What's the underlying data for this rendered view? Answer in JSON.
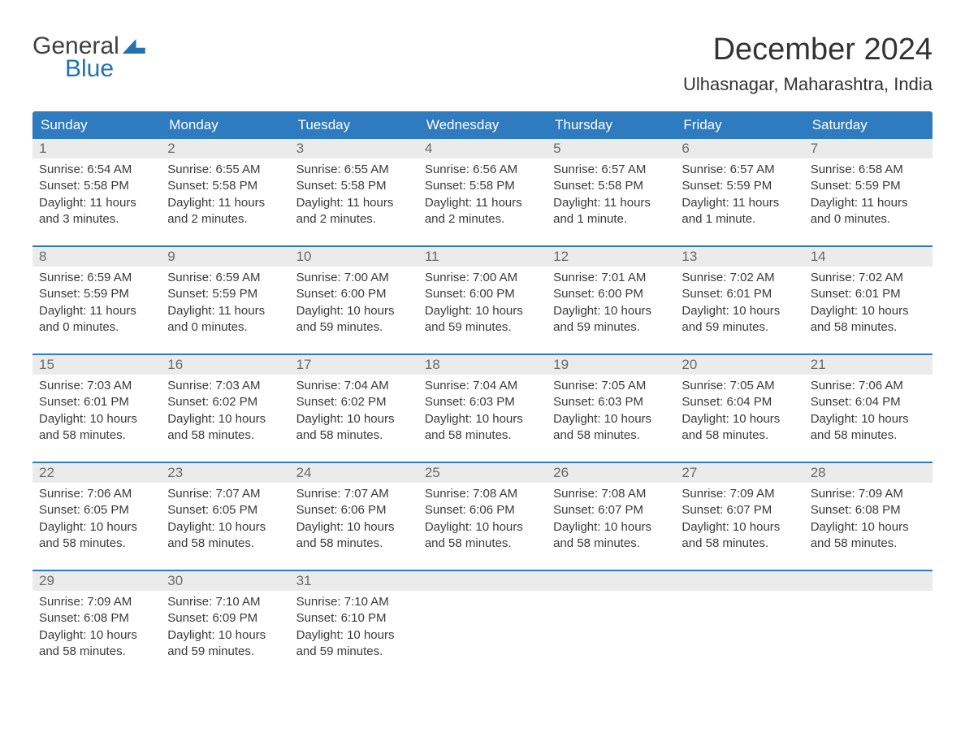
{
  "logo": {
    "text_general": "General",
    "text_blue": "Blue"
  },
  "header": {
    "month_title": "December 2024",
    "location": "Ulhasnagar, Maharashtra, India"
  },
  "colors": {
    "header_bg": "#2e7bc0",
    "week_border": "#2e7bc0",
    "day_number_bg": "#ebebeb",
    "day_number_text": "#6a6a6a",
    "content_text": "#3a3a3a",
    "logo_blue": "#2171b5",
    "logo_gray": "#404040",
    "background": "#ffffff"
  },
  "day_names": [
    "Sunday",
    "Monday",
    "Tuesday",
    "Wednesday",
    "Thursday",
    "Friday",
    "Saturday"
  ],
  "weeks": [
    [
      {
        "num": "1",
        "sunrise": "Sunrise: 6:54 AM",
        "sunset": "Sunset: 5:58 PM",
        "daylight1": "Daylight: 11 hours",
        "daylight2": "and 3 minutes."
      },
      {
        "num": "2",
        "sunrise": "Sunrise: 6:55 AM",
        "sunset": "Sunset: 5:58 PM",
        "daylight1": "Daylight: 11 hours",
        "daylight2": "and 2 minutes."
      },
      {
        "num": "3",
        "sunrise": "Sunrise: 6:55 AM",
        "sunset": "Sunset: 5:58 PM",
        "daylight1": "Daylight: 11 hours",
        "daylight2": "and 2 minutes."
      },
      {
        "num": "4",
        "sunrise": "Sunrise: 6:56 AM",
        "sunset": "Sunset: 5:58 PM",
        "daylight1": "Daylight: 11 hours",
        "daylight2": "and 2 minutes."
      },
      {
        "num": "5",
        "sunrise": "Sunrise: 6:57 AM",
        "sunset": "Sunset: 5:58 PM",
        "daylight1": "Daylight: 11 hours",
        "daylight2": "and 1 minute."
      },
      {
        "num": "6",
        "sunrise": "Sunrise: 6:57 AM",
        "sunset": "Sunset: 5:59 PM",
        "daylight1": "Daylight: 11 hours",
        "daylight2": "and 1 minute."
      },
      {
        "num": "7",
        "sunrise": "Sunrise: 6:58 AM",
        "sunset": "Sunset: 5:59 PM",
        "daylight1": "Daylight: 11 hours",
        "daylight2": "and 0 minutes."
      }
    ],
    [
      {
        "num": "8",
        "sunrise": "Sunrise: 6:59 AM",
        "sunset": "Sunset: 5:59 PM",
        "daylight1": "Daylight: 11 hours",
        "daylight2": "and 0 minutes."
      },
      {
        "num": "9",
        "sunrise": "Sunrise: 6:59 AM",
        "sunset": "Sunset: 5:59 PM",
        "daylight1": "Daylight: 11 hours",
        "daylight2": "and 0 minutes."
      },
      {
        "num": "10",
        "sunrise": "Sunrise: 7:00 AM",
        "sunset": "Sunset: 6:00 PM",
        "daylight1": "Daylight: 10 hours",
        "daylight2": "and 59 minutes."
      },
      {
        "num": "11",
        "sunrise": "Sunrise: 7:00 AM",
        "sunset": "Sunset: 6:00 PM",
        "daylight1": "Daylight: 10 hours",
        "daylight2": "and 59 minutes."
      },
      {
        "num": "12",
        "sunrise": "Sunrise: 7:01 AM",
        "sunset": "Sunset: 6:00 PM",
        "daylight1": "Daylight: 10 hours",
        "daylight2": "and 59 minutes."
      },
      {
        "num": "13",
        "sunrise": "Sunrise: 7:02 AM",
        "sunset": "Sunset: 6:01 PM",
        "daylight1": "Daylight: 10 hours",
        "daylight2": "and 59 minutes."
      },
      {
        "num": "14",
        "sunrise": "Sunrise: 7:02 AM",
        "sunset": "Sunset: 6:01 PM",
        "daylight1": "Daylight: 10 hours",
        "daylight2": "and 58 minutes."
      }
    ],
    [
      {
        "num": "15",
        "sunrise": "Sunrise: 7:03 AM",
        "sunset": "Sunset: 6:01 PM",
        "daylight1": "Daylight: 10 hours",
        "daylight2": "and 58 minutes."
      },
      {
        "num": "16",
        "sunrise": "Sunrise: 7:03 AM",
        "sunset": "Sunset: 6:02 PM",
        "daylight1": "Daylight: 10 hours",
        "daylight2": "and 58 minutes."
      },
      {
        "num": "17",
        "sunrise": "Sunrise: 7:04 AM",
        "sunset": "Sunset: 6:02 PM",
        "daylight1": "Daylight: 10 hours",
        "daylight2": "and 58 minutes."
      },
      {
        "num": "18",
        "sunrise": "Sunrise: 7:04 AM",
        "sunset": "Sunset: 6:03 PM",
        "daylight1": "Daylight: 10 hours",
        "daylight2": "and 58 minutes."
      },
      {
        "num": "19",
        "sunrise": "Sunrise: 7:05 AM",
        "sunset": "Sunset: 6:03 PM",
        "daylight1": "Daylight: 10 hours",
        "daylight2": "and 58 minutes."
      },
      {
        "num": "20",
        "sunrise": "Sunrise: 7:05 AM",
        "sunset": "Sunset: 6:04 PM",
        "daylight1": "Daylight: 10 hours",
        "daylight2": "and 58 minutes."
      },
      {
        "num": "21",
        "sunrise": "Sunrise: 7:06 AM",
        "sunset": "Sunset: 6:04 PM",
        "daylight1": "Daylight: 10 hours",
        "daylight2": "and 58 minutes."
      }
    ],
    [
      {
        "num": "22",
        "sunrise": "Sunrise: 7:06 AM",
        "sunset": "Sunset: 6:05 PM",
        "daylight1": "Daylight: 10 hours",
        "daylight2": "and 58 minutes."
      },
      {
        "num": "23",
        "sunrise": "Sunrise: 7:07 AM",
        "sunset": "Sunset: 6:05 PM",
        "daylight1": "Daylight: 10 hours",
        "daylight2": "and 58 minutes."
      },
      {
        "num": "24",
        "sunrise": "Sunrise: 7:07 AM",
        "sunset": "Sunset: 6:06 PM",
        "daylight1": "Daylight: 10 hours",
        "daylight2": "and 58 minutes."
      },
      {
        "num": "25",
        "sunrise": "Sunrise: 7:08 AM",
        "sunset": "Sunset: 6:06 PM",
        "daylight1": "Daylight: 10 hours",
        "daylight2": "and 58 minutes."
      },
      {
        "num": "26",
        "sunrise": "Sunrise: 7:08 AM",
        "sunset": "Sunset: 6:07 PM",
        "daylight1": "Daylight: 10 hours",
        "daylight2": "and 58 minutes."
      },
      {
        "num": "27",
        "sunrise": "Sunrise: 7:09 AM",
        "sunset": "Sunset: 6:07 PM",
        "daylight1": "Daylight: 10 hours",
        "daylight2": "and 58 minutes."
      },
      {
        "num": "28",
        "sunrise": "Sunrise: 7:09 AM",
        "sunset": "Sunset: 6:08 PM",
        "daylight1": "Daylight: 10 hours",
        "daylight2": "and 58 minutes."
      }
    ],
    [
      {
        "num": "29",
        "sunrise": "Sunrise: 7:09 AM",
        "sunset": "Sunset: 6:08 PM",
        "daylight1": "Daylight: 10 hours",
        "daylight2": "and 58 minutes."
      },
      {
        "num": "30",
        "sunrise": "Sunrise: 7:10 AM",
        "sunset": "Sunset: 6:09 PM",
        "daylight1": "Daylight: 10 hours",
        "daylight2": "and 59 minutes."
      },
      {
        "num": "31",
        "sunrise": "Sunrise: 7:10 AM",
        "sunset": "Sunset: 6:10 PM",
        "daylight1": "Daylight: 10 hours",
        "daylight2": "and 59 minutes."
      },
      {
        "num": "",
        "sunrise": "",
        "sunset": "",
        "daylight1": "",
        "daylight2": ""
      },
      {
        "num": "",
        "sunrise": "",
        "sunset": "",
        "daylight1": "",
        "daylight2": ""
      },
      {
        "num": "",
        "sunrise": "",
        "sunset": "",
        "daylight1": "",
        "daylight2": ""
      },
      {
        "num": "",
        "sunrise": "",
        "sunset": "",
        "daylight1": "",
        "daylight2": ""
      }
    ]
  ]
}
